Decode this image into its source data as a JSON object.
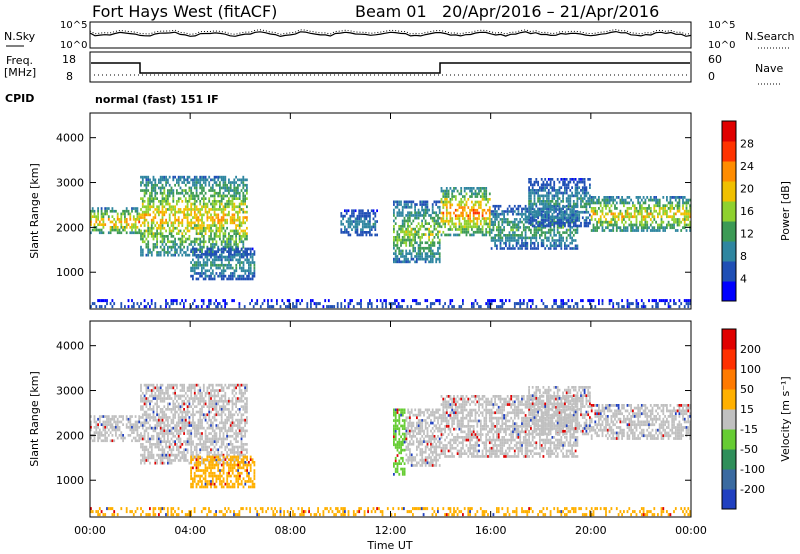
{
  "header": {
    "station": "Fort Hays West (fitACF)",
    "beam": "Beam 01",
    "date_range": "20/Apr/2016 – 21/Apr/2016"
  },
  "noise_panel": {
    "left_label": "N.Sky",
    "right_label": "N.Search",
    "ticks_left": [
      "10^5",
      "10^0"
    ],
    "ticks_right": [
      "10^5",
      "10^0"
    ]
  },
  "freq_panel": {
    "left_label_1": "Freq.",
    "left_label_2": "[MHz]",
    "right_label": "Nave",
    "ticks_left": [
      "18",
      "8"
    ],
    "ticks_right": [
      "60",
      "0"
    ]
  },
  "cpid": {
    "label": "CPID",
    "value": "normal (fast) 151 IF"
  },
  "colors": {
    "frame": "#000000",
    "ground_scatter": "#c0c0c0"
  },
  "chart_data": [
    {
      "type": "heatmap",
      "name": "Power",
      "ylabel": "Slant Range [km]",
      "xlabel": "Time UT",
      "xlim_hours": [
        0,
        24
      ],
      "ylim_km": [
        180,
        4550
      ],
      "x_ticks": [
        "00:00",
        "04:00",
        "08:00",
        "12:00",
        "16:00",
        "20:00",
        "00:00"
      ],
      "y_ticks": [
        1000,
        2000,
        3000,
        4000
      ],
      "colorbar": {
        "label": "Power [dB]",
        "range": [
          0,
          32
        ],
        "ticks": [
          4,
          8,
          12,
          16,
          20,
          24,
          28
        ],
        "colors": [
          "#0000ff",
          "#1f4fb5",
          "#2f86a0",
          "#3c9a55",
          "#8fd12f",
          "#f0c000",
          "#ff8c00",
          "#ff3300",
          "#e00000"
        ]
      },
      "echo_regions": [
        {
          "t0": 0.0,
          "t1": 2.0,
          "r0": 1850,
          "r1": 2450,
          "peak": 24
        },
        {
          "t0": 2.0,
          "t1": 6.3,
          "r0": 1350,
          "r1": 3150,
          "peak": 22
        },
        {
          "t0": 4.0,
          "t1": 6.6,
          "r0": 820,
          "r1": 1550,
          "peak": 12
        },
        {
          "t0": 10.0,
          "t1": 11.5,
          "r0": 1800,
          "r1": 2400,
          "peak": 10
        },
        {
          "t0": 12.1,
          "t1": 14.0,
          "r0": 1200,
          "r1": 2600,
          "peak": 18
        },
        {
          "t0": 14.0,
          "t1": 16.0,
          "r0": 1800,
          "r1": 2900,
          "peak": 26
        },
        {
          "t0": 16.0,
          "t1": 19.5,
          "r0": 1500,
          "r1": 2500,
          "peak": 14
        },
        {
          "t0": 17.5,
          "t1": 20.0,
          "r0": 2000,
          "r1": 3100,
          "peak": 12
        },
        {
          "t0": 20.0,
          "t1": 24.0,
          "r0": 1900,
          "r1": 2700,
          "peak": 22
        },
        {
          "t0": 0.0,
          "t1": 24.0,
          "r0": 200,
          "r1": 400,
          "peak": 6
        }
      ]
    },
    {
      "type": "heatmap",
      "name": "Velocity",
      "ylabel": "Slant Range [km]",
      "xlabel": "Time UT",
      "xlim_hours": [
        0,
        24
      ],
      "ylim_km": [
        180,
        4550
      ],
      "x_ticks": [
        "00:00",
        "04:00",
        "08:00",
        "12:00",
        "16:00",
        "20:00",
        "00:00"
      ],
      "y_ticks": [
        1000,
        2000,
        3000,
        4000
      ],
      "colorbar": {
        "label": "Velocity [m s⁻¹]",
        "ticks": [
          "200",
          "100",
          "50",
          "15",
          "-15",
          "-50",
          "-100",
          "-200"
        ],
        "colors": [
          "#2040c0",
          "#3a6aa0",
          "#2f8f5a",
          "#66cc33",
          "#c0c0c0",
          "#ffb000",
          "#ff7a00",
          "#ff3000",
          "#e00000"
        ]
      },
      "echo_regions": [
        {
          "t0": 0.0,
          "t1": 2.0,
          "r0": 1850,
          "r1": 2450,
          "v": "gray"
        },
        {
          "t0": 2.0,
          "t1": 6.3,
          "r0": 1350,
          "r1": 3150,
          "v": "gray"
        },
        {
          "t0": 4.0,
          "t1": 6.6,
          "r0": 820,
          "r1": 1550,
          "v": "orange"
        },
        {
          "t0": 12.1,
          "t1": 12.6,
          "r0": 1100,
          "r1": 2600,
          "v": "green"
        },
        {
          "t0": 12.6,
          "t1": 14.0,
          "r0": 1300,
          "r1": 2600,
          "v": "gray"
        },
        {
          "t0": 14.0,
          "t1": 19.5,
          "r0": 1500,
          "r1": 2900,
          "v": "gray"
        },
        {
          "t0": 17.5,
          "t1": 20.0,
          "r0": 2000,
          "r1": 3100,
          "v": "gray"
        },
        {
          "t0": 20.0,
          "t1": 24.0,
          "r0": 1900,
          "r1": 2700,
          "v": "gray"
        },
        {
          "t0": 0.0,
          "t1": 24.0,
          "r0": 200,
          "r1": 400,
          "v": "orange"
        }
      ]
    }
  ]
}
